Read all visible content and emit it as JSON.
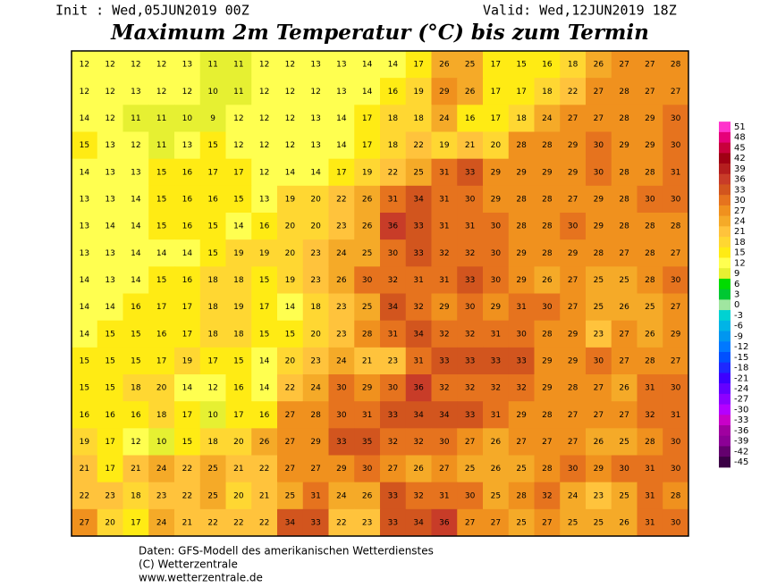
{
  "header": {
    "init": "Init : Wed,05JUN2019 00Z",
    "valid": "Valid: Wed,12JUN2019 18Z",
    "title": "Maximum 2m Temperatur (°C) bis zum Termin"
  },
  "footer": {
    "lines": [
      "Daten: GFS-Modell des amerikanischen Wetterdienstes",
      "(C) Wetterzentrale",
      "www.wetterzentrale.de"
    ]
  },
  "legend": {
    "levels": [
      51,
      48,
      45,
      42,
      39,
      36,
      33,
      30,
      27,
      24,
      21,
      18,
      15,
      12,
      9,
      6,
      3,
      0,
      -3,
      -6,
      -9,
      -12,
      -15,
      -18,
      -21,
      -24,
      -27,
      -30,
      -33,
      -36,
      -39,
      -42,
      -45
    ],
    "colors": [
      "#ff33cc",
      "#e6007a",
      "#c8003c",
      "#a00014",
      "#b41e1e",
      "#c83c28",
      "#d2551e",
      "#e6731e",
      "#f0911e",
      "#f5aa28",
      "#ffc33c",
      "#ffd732",
      "#ffeb14",
      "#ffff50",
      "#e6f032",
      "#00dc00",
      "#00c832",
      "#a0e6a0",
      "#00d2d2",
      "#00b4e6",
      "#0096f0",
      "#0078ff",
      "#0050ff",
      "#1e28ff",
      "#3c00ff",
      "#6400ff",
      "#8c00ff",
      "#b400ff",
      "#c800c8",
      "#a000a0",
      "#8c0096",
      "#64006e",
      "#3c0046"
    ]
  },
  "map": {
    "grid": [
      [
        12,
        12,
        12,
        12,
        13,
        11,
        11,
        12,
        12,
        13,
        13,
        14,
        14,
        17,
        26,
        25,
        17,
        15,
        16,
        18,
        26,
        27,
        27,
        28
      ],
      [
        12,
        12,
        13,
        12,
        12,
        10,
        11,
        12,
        12,
        12,
        13,
        14,
        16,
        19,
        29,
        26,
        17,
        17,
        18,
        22,
        27,
        28,
        27,
        27
      ],
      [
        14,
        12,
        11,
        11,
        10,
        9,
        12,
        12,
        12,
        13,
        14,
        17,
        18,
        18,
        24,
        16,
        17,
        18,
        24,
        27,
        27,
        28,
        29,
        30
      ],
      [
        15,
        13,
        12,
        11,
        13,
        15,
        12,
        12,
        12,
        13,
        14,
        17,
        18,
        22,
        19,
        21,
        20,
        28,
        28,
        29,
        30,
        29,
        29,
        30
      ],
      [
        14,
        13,
        13,
        15,
        16,
        17,
        17,
        12,
        14,
        14,
        17,
        19,
        22,
        25,
        31,
        33,
        29,
        29,
        29,
        29,
        30,
        28,
        28,
        31
      ],
      [
        13,
        13,
        14,
        15,
        16,
        16,
        15,
        13,
        19,
        20,
        22,
        26,
        31,
        34,
        31,
        30,
        29,
        28,
        28,
        27,
        29,
        28,
        30,
        30
      ],
      [
        13,
        14,
        14,
        15,
        16,
        15,
        14,
        16,
        20,
        20,
        23,
        26,
        36,
        33,
        31,
        31,
        30,
        28,
        28,
        30,
        29,
        28,
        28,
        28
      ],
      [
        13,
        13,
        14,
        14,
        14,
        15,
        19,
        19,
        20,
        23,
        24,
        25,
        30,
        33,
        32,
        32,
        30,
        29,
        28,
        29,
        28,
        27,
        28,
        27
      ],
      [
        14,
        13,
        14,
        15,
        16,
        18,
        18,
        15,
        19,
        23,
        26,
        30,
        32,
        31,
        31,
        33,
        30,
        29,
        26,
        27,
        25,
        25,
        28,
        30
      ],
      [
        14,
        14,
        16,
        17,
        17,
        18,
        19,
        17,
        14,
        18,
        23,
        25,
        34,
        32,
        29,
        30,
        29,
        31,
        30,
        27,
        25,
        26,
        25,
        27
      ],
      [
        14,
        15,
        15,
        16,
        17,
        18,
        18,
        15,
        15,
        20,
        23,
        28,
        31,
        34,
        32,
        32,
        31,
        30,
        28,
        29,
        23,
        27,
        26,
        29
      ],
      [
        15,
        15,
        15,
        17,
        19,
        17,
        15,
        14,
        20,
        23,
        24,
        21,
        23,
        31,
        33,
        33,
        33,
        33,
        29,
        29,
        30,
        27,
        28,
        27
      ],
      [
        15,
        15,
        18,
        20,
        14,
        12,
        16,
        14,
        22,
        24,
        30,
        29,
        30,
        36,
        32,
        32,
        32,
        32,
        29,
        28,
        27,
        26,
        31,
        30
      ],
      [
        16,
        16,
        16,
        18,
        17,
        10,
        17,
        16,
        27,
        28,
        30,
        31,
        33,
        34,
        34,
        33,
        31,
        29,
        28,
        27,
        27,
        27,
        32,
        31
      ],
      [
        19,
        17,
        12,
        10,
        15,
        18,
        20,
        26,
        27,
        29,
        33,
        35,
        32,
        32,
        30,
        27,
        26,
        27,
        27,
        27,
        26,
        25,
        28,
        30
      ],
      [
        21,
        17,
        21,
        24,
        22,
        25,
        21,
        22,
        27,
        27,
        29,
        30,
        27,
        26,
        27,
        25,
        26,
        25,
        28,
        30,
        29,
        30,
        31,
        30
      ],
      [
        22,
        23,
        18,
        23,
        22,
        25,
        20,
        21,
        25,
        31,
        24,
        26,
        33,
        32,
        31,
        30,
        25,
        28,
        32,
        24,
        23,
        25,
        31,
        28
      ],
      [
        27,
        20,
        17,
        24,
        21,
        22,
        22,
        22,
        34,
        33,
        22,
        23,
        33,
        34,
        36,
        27,
        27,
        25,
        27,
        25,
        25,
        26,
        31,
        30
      ]
    ]
  }
}
